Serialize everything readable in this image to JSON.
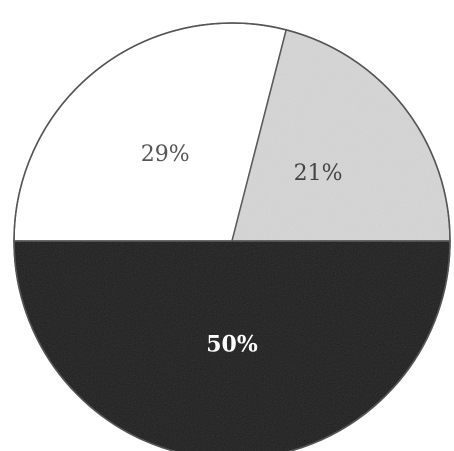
{
  "chart_data": {
    "type": "pie",
    "title": "",
    "start_angle_deg": 180,
    "direction": "clockwise",
    "slices": [
      {
        "label": "29%",
        "value": 29,
        "color": "#ffffff",
        "text_color": "#555555",
        "bold": false
      },
      {
        "label": "21%",
        "value": 21,
        "color": "#d6d6d6",
        "text_color": "#444444",
        "bold": false
      },
      {
        "label": "50%",
        "value": 50,
        "color": "#1c1c1c",
        "text_color": "#ffffff",
        "bold": true
      }
    ],
    "edge_color": "#555555",
    "legend": "none"
  }
}
